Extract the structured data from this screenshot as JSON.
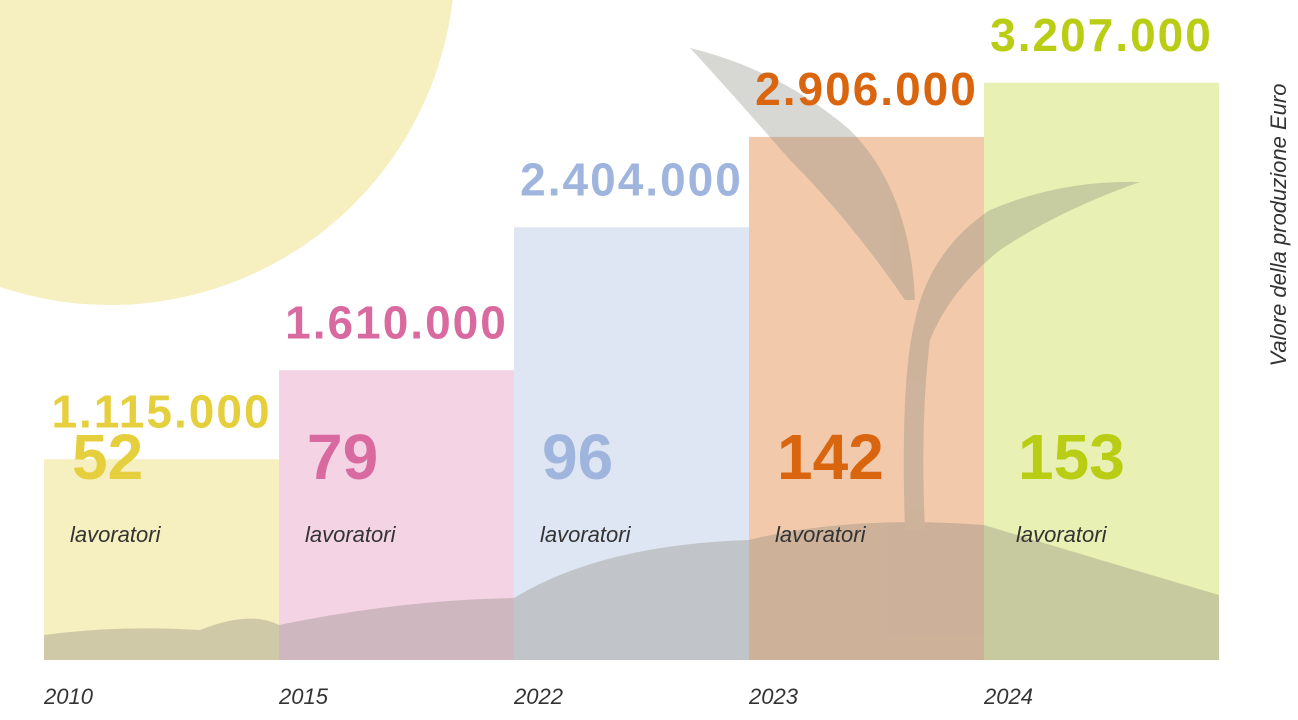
{
  "chart_data": {
    "type": "bar",
    "categories": [
      "2010",
      "2015",
      "2022",
      "2023",
      "2024"
    ],
    "values": [
      1115000,
      1610000,
      2404000,
      2906000,
      3207000
    ],
    "value_labels": [
      "1.115.000",
      "1.610.000",
      "2.404.000",
      "2.906.000",
      "3.207.000"
    ],
    "workers": [
      52,
      79,
      96,
      142,
      153
    ],
    "workers_label": "lavoratori",
    "y_label": "Valore della produzione Euro",
    "colors": [
      "#e6cf3c",
      "#d96aa0",
      "#9fb5de",
      "#d9650f",
      "#b9cd14"
    ],
    "bar_colors": [
      "#f6efc0",
      "#f3d3e4",
      "#dfe6f3",
      "#f2c9ab",
      "#e9f0b3"
    ],
    "ylim": [
      0,
      3600000
    ]
  }
}
